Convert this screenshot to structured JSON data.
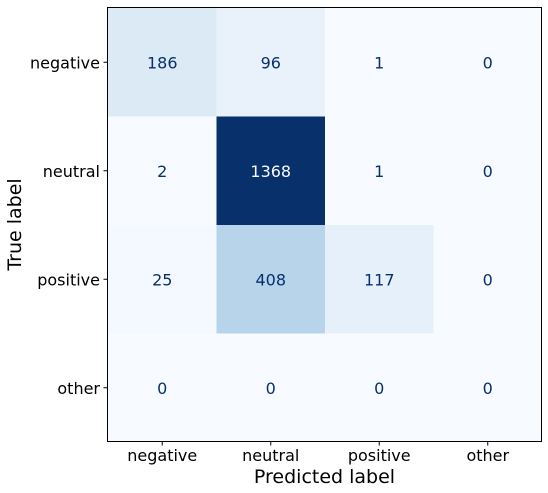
{
  "chart_data": {
    "type": "heatmap",
    "title": "",
    "xlabel": "Predicted label",
    "ylabel": "True label",
    "x_categories": [
      "negative",
      "neutral",
      "positive",
      "other"
    ],
    "y_categories": [
      "negative",
      "neutral",
      "positive",
      "other"
    ],
    "values": [
      [
        186,
        96,
        1,
        0
      ],
      [
        2,
        1368,
        1,
        0
      ],
      [
        25,
        408,
        117,
        0
      ],
      [
        0,
        0,
        0,
        0
      ]
    ],
    "colormap": "Blues",
    "color_range": [
      0,
      1368
    ],
    "grid": false,
    "colors": {
      "low": "#f7fbff",
      "high": "#08306b",
      "text_dark": "#08306b",
      "text_light": "#f7fbff"
    }
  }
}
